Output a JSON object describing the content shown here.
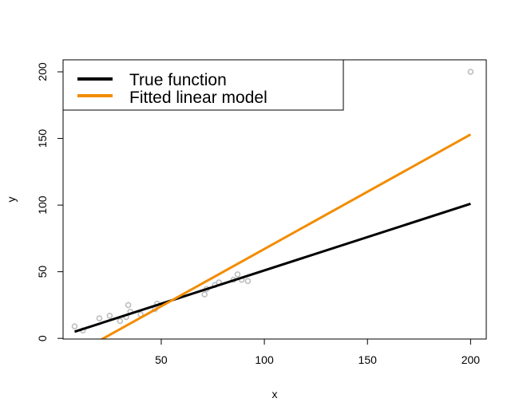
{
  "chart_data": {
    "type": "scatter",
    "title": "",
    "xlabel": "x",
    "ylabel": "y",
    "xlim": [
      2.4,
      207.6
    ],
    "ylim": [
      -0.5,
      209
    ],
    "x_ticks": [
      50,
      100,
      150,
      200
    ],
    "y_ticks": [
      0,
      50,
      100,
      150,
      200
    ],
    "grid": false,
    "legend_position": "top-left",
    "points_color": "#bebebe",
    "points": [
      {
        "x": 8,
        "y": 9
      },
      {
        "x": 12,
        "y": 6
      },
      {
        "x": 20,
        "y": 15
      },
      {
        "x": 25,
        "y": 17
      },
      {
        "x": 30,
        "y": 13
      },
      {
        "x": 33,
        "y": 16
      },
      {
        "x": 34,
        "y": 25
      },
      {
        "x": 35,
        "y": 20
      },
      {
        "x": 40,
        "y": 18
      },
      {
        "x": 47,
        "y": 22
      },
      {
        "x": 48,
        "y": 26
      },
      {
        "x": 71,
        "y": 33
      },
      {
        "x": 72,
        "y": 37
      },
      {
        "x": 76,
        "y": 40
      },
      {
        "x": 78,
        "y": 42
      },
      {
        "x": 85,
        "y": 44
      },
      {
        "x": 87,
        "y": 48
      },
      {
        "x": 89,
        "y": 44
      },
      {
        "x": 92,
        "y": 43
      },
      {
        "x": 200,
        "y": 200
      }
    ],
    "series": [
      {
        "name": "True function",
        "color": "#000000",
        "type": "line",
        "x": [
          8,
          200
        ],
        "y": [
          5,
          101
        ]
      },
      {
        "name": "Fitted linear model",
        "color": "#f28c00",
        "type": "line",
        "x": [
          8,
          200
        ],
        "y": [
          -12,
          153
        ]
      }
    ]
  }
}
